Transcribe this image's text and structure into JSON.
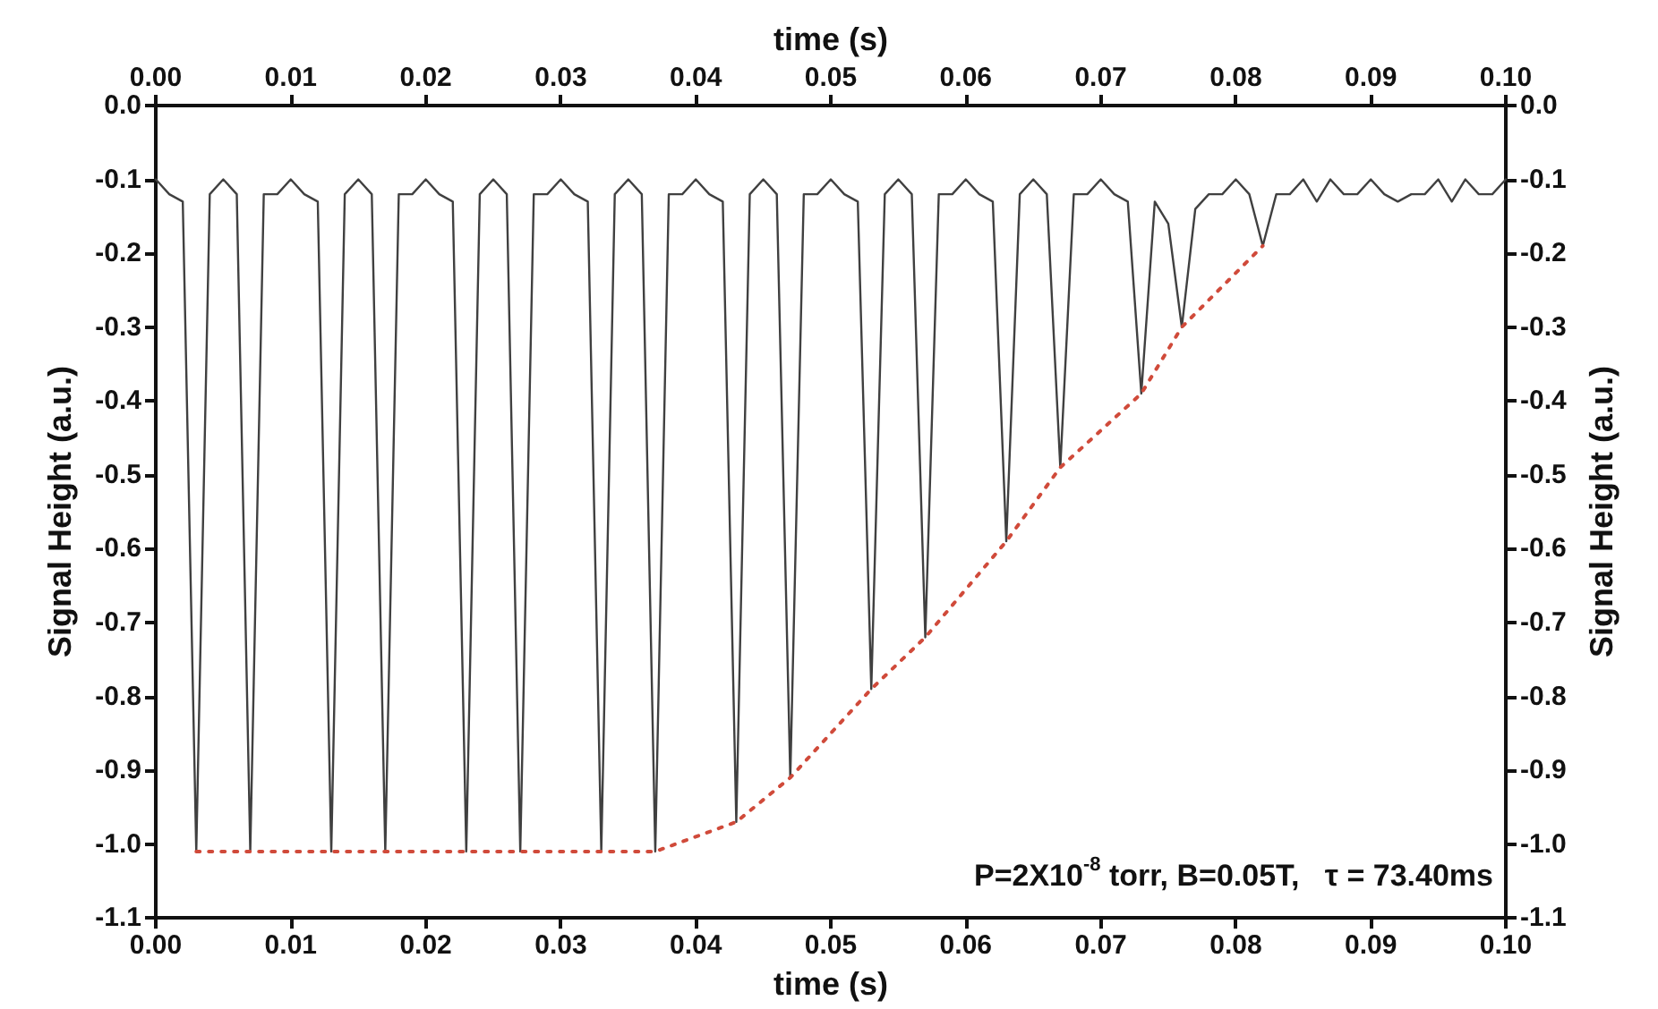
{
  "chart_data": {
    "type": "line",
    "xlabel": "time (s)",
    "x2label": "time (s)",
    "ylabel": "Signal Height (a.u.)",
    "y2label": "Signal Height (a.u.)",
    "x": [
      0.0,
      0.001,
      0.002,
      0.003,
      0.004,
      0.005,
      0.006,
      0.007,
      0.008,
      0.009,
      0.01,
      0.011,
      0.012,
      0.013,
      0.014,
      0.015,
      0.016,
      0.017,
      0.018,
      0.019,
      0.02,
      0.021,
      0.022,
      0.023,
      0.024,
      0.025,
      0.026,
      0.027,
      0.028,
      0.029,
      0.03,
      0.031,
      0.032,
      0.033,
      0.034,
      0.035,
      0.036,
      0.037,
      0.038,
      0.039,
      0.04,
      0.041,
      0.042,
      0.043,
      0.044,
      0.045,
      0.046,
      0.047,
      0.048,
      0.049,
      0.05,
      0.051,
      0.052,
      0.053,
      0.054,
      0.055,
      0.056,
      0.057,
      0.058,
      0.059,
      0.06,
      0.061,
      0.062,
      0.063,
      0.064,
      0.065,
      0.066,
      0.067,
      0.068,
      0.069,
      0.07,
      0.071,
      0.072,
      0.073,
      0.074,
      0.075,
      0.076,
      0.077,
      0.078,
      0.079,
      0.08,
      0.081,
      0.082,
      0.083,
      0.084,
      0.085,
      0.086,
      0.087,
      0.088,
      0.089,
      0.09,
      0.091,
      0.092,
      0.093,
      0.094,
      0.095,
      0.096,
      0.097,
      0.098,
      0.099,
      0.1
    ],
    "series": [
      {
        "color": "#404040",
        "values": [
          -0.1,
          -0.12,
          -0.13,
          -1.01,
          -0.12,
          -0.1,
          -0.12,
          -1.01,
          -0.12,
          -0.12,
          -0.1,
          -0.12,
          -0.13,
          -1.01,
          -0.12,
          -0.1,
          -0.12,
          -1.01,
          -0.12,
          -0.12,
          -0.1,
          -0.12,
          -0.13,
          -1.01,
          -0.12,
          -0.1,
          -0.12,
          -1.01,
          -0.12,
          -0.12,
          -0.1,
          -0.12,
          -0.13,
          -1.01,
          -0.12,
          -0.1,
          -0.12,
          -1.01,
          -0.12,
          -0.12,
          -0.1,
          -0.12,
          -0.13,
          -0.97,
          -0.12,
          -0.1,
          -0.12,
          -0.91,
          -0.12,
          -0.12,
          -0.1,
          -0.12,
          -0.13,
          -0.79,
          -0.12,
          -0.1,
          -0.12,
          -0.72,
          -0.12,
          -0.12,
          -0.1,
          -0.12,
          -0.13,
          -0.59,
          -0.12,
          -0.1,
          -0.12,
          -0.49,
          -0.12,
          -0.12,
          -0.1,
          -0.12,
          -0.13,
          -0.39,
          -0.13,
          -0.16,
          -0.3,
          -0.14,
          -0.12,
          -0.12,
          -0.1,
          -0.12,
          -0.19,
          -0.12,
          -0.12,
          -0.1,
          -0.13,
          -0.1,
          -0.12,
          -0.12,
          -0.1,
          -0.12,
          -0.13,
          -0.12,
          -0.12,
          -0.1,
          -0.13,
          -0.1,
          -0.12,
          -0.12,
          -0.1
        ]
      },
      {
        "color": "#d04a3a",
        "line_style": "dotted",
        "x": [
          0.003,
          0.007,
          0.013,
          0.017,
          0.023,
          0.027,
          0.033,
          0.037,
          0.043,
          0.047,
          0.053,
          0.057,
          0.063,
          0.067,
          0.073,
          0.076,
          0.082
        ],
        "values": [
          -1.01,
          -1.01,
          -1.01,
          -1.01,
          -1.01,
          -1.01,
          -1.01,
          -1.01,
          -0.97,
          -0.91,
          -0.79,
          -0.72,
          -0.59,
          -0.49,
          -0.39,
          -0.3,
          -0.19
        ]
      }
    ],
    "xlim": [
      0,
      0.1
    ],
    "x2lim": [
      0,
      0.1
    ],
    "xticks": [
      {
        "value": 0,
        "label": "0.00"
      },
      {
        "value": 0.01,
        "label": "0.01"
      },
      {
        "value": 0.02,
        "label": "0.02"
      },
      {
        "value": 0.03,
        "label": "0.03"
      },
      {
        "value": 0.04,
        "label": "0.04"
      },
      {
        "value": 0.05,
        "label": "0.05"
      },
      {
        "value": 0.06,
        "label": "0.06"
      },
      {
        "value": 0.07,
        "label": "0.07"
      },
      {
        "value": 0.08,
        "label": "0.08"
      },
      {
        "value": 0.09,
        "label": "0.09"
      },
      {
        "value": 0.1,
        "label": "0.10"
      }
    ],
    "x2ticks": [
      {
        "value": 0,
        "label": "0.00"
      },
      {
        "value": 0.01,
        "label": "0.01"
      },
      {
        "value": 0.02,
        "label": "0.02"
      },
      {
        "value": 0.03,
        "label": "0.03"
      },
      {
        "value": 0.04,
        "label": "0.04"
      },
      {
        "value": 0.05,
        "label": "0.05"
      },
      {
        "value": 0.06,
        "label": "0.06"
      },
      {
        "value": 0.07,
        "label": "0.07"
      },
      {
        "value": 0.08,
        "label": "0.08"
      },
      {
        "value": 0.09,
        "label": "0.09"
      },
      {
        "value": 0.1,
        "label": "0.10"
      }
    ],
    "ylim": [
      -1.1,
      0
    ],
    "y2lim": [
      -1.1,
      0
    ],
    "yticks": [
      {
        "value": 0,
        "label": "0.0"
      },
      -0.1,
      -0.2,
      -0.3,
      -0.4,
      -0.5,
      -0.6,
      -0.7,
      -0.8,
      -0.9,
      {
        "value": -1,
        "label": "-1.0"
      },
      -1.1
    ],
    "y2ticks": [
      {
        "value": 0,
        "label": "0.0"
      },
      -0.1,
      -0.2,
      -0.3,
      -0.4,
      -0.5,
      -0.6,
      -0.7,
      -0.8,
      -0.9,
      {
        "value": -1,
        "label": "-1.0"
      },
      -1.1
    ],
    "annotations": [
      "P=2X10$^{-8}$ torr, B=0.05T,   τ = 73.40ms"
    ]
  }
}
